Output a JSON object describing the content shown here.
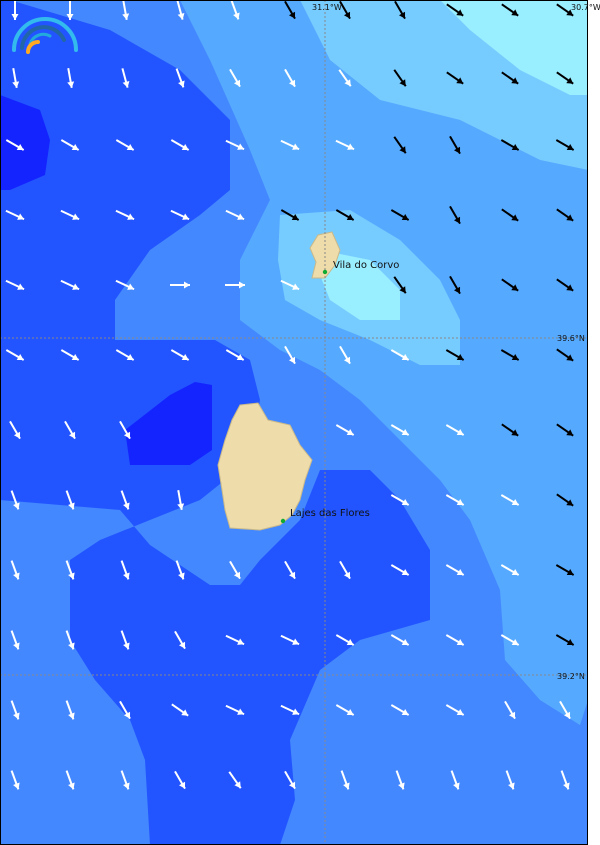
{
  "map": {
    "colors": {
      "band1": "#1424ff",
      "band2": "#2255ff",
      "band3": "#4488ff",
      "band4": "#55aaff",
      "band5": "#77ccff",
      "band6": "#99eeff",
      "land": "#eedcaa",
      "town": "#11aa33"
    },
    "graticule": {
      "lon_labels": [
        "31.1°W",
        "30.7°W"
      ],
      "lat_labels": [
        "39.6°N",
        "39.2°N"
      ]
    },
    "places": [
      {
        "name": "Vila do Corvo"
      },
      {
        "name": "Lajes das Flores"
      }
    ],
    "arrows": {
      "note_units": "direction in degrees clockwise from east",
      "rows": [
        [
          [
            90,
            "w"
          ],
          [
            90,
            "w"
          ],
          [
            80,
            "w"
          ],
          [
            75,
            "w"
          ],
          [
            70,
            "w"
          ],
          [
            60,
            "b"
          ],
          [
            60,
            "b"
          ],
          [
            60,
            "b"
          ],
          [
            35,
            "b"
          ],
          [
            35,
            "b"
          ],
          [
            35,
            "b"
          ]
        ],
        [
          [
            80,
            "w"
          ],
          [
            80,
            "w"
          ],
          [
            75,
            "w"
          ],
          [
            70,
            "w"
          ],
          [
            60,
            "w"
          ],
          [
            60,
            "w"
          ],
          [
            55,
            "w"
          ],
          [
            55,
            "b"
          ],
          [
            35,
            "b"
          ],
          [
            35,
            "b"
          ],
          [
            35,
            "b"
          ]
        ],
        [
          [
            30,
            "w"
          ],
          [
            30,
            "w"
          ],
          [
            30,
            "w"
          ],
          [
            30,
            "w"
          ],
          [
            25,
            "w"
          ],
          [
            25,
            "w"
          ],
          [
            25,
            "w"
          ],
          [
            55,
            "b"
          ],
          [
            60,
            "b"
          ],
          [
            30,
            "b"
          ],
          [
            30,
            "b"
          ]
        ],
        [
          [
            25,
            "w"
          ],
          [
            25,
            "w"
          ],
          [
            25,
            "w"
          ],
          [
            25,
            "w"
          ],
          [
            25,
            "w"
          ],
          [
            30,
            "b"
          ],
          [
            30,
            "b"
          ],
          [
            30,
            "b"
          ],
          [
            60,
            "b"
          ],
          [
            35,
            "b"
          ],
          [
            35,
            "b"
          ]
        ],
        [
          [
            25,
            "w"
          ],
          [
            25,
            "w"
          ],
          [
            25,
            "w"
          ],
          [
            0,
            "w"
          ],
          [
            0,
            "w"
          ],
          [
            25,
            "w"
          ],
          null,
          [
            55,
            "b"
          ],
          [
            60,
            "b"
          ],
          [
            35,
            "b"
          ],
          [
            35,
            "b"
          ]
        ],
        [
          [
            30,
            "w"
          ],
          [
            30,
            "w"
          ],
          [
            30,
            "w"
          ],
          [
            30,
            "w"
          ],
          [
            30,
            "w"
          ],
          [
            60,
            "w"
          ],
          [
            60,
            "w"
          ],
          [
            30,
            "w"
          ],
          [
            30,
            "b"
          ],
          [
            30,
            "b"
          ],
          [
            35,
            "b"
          ]
        ],
        [
          [
            60,
            "w"
          ],
          [
            60,
            "w"
          ],
          [
            60,
            "w"
          ],
          null,
          null,
          null,
          [
            30,
            "w"
          ],
          [
            30,
            "w"
          ],
          [
            30,
            "w"
          ],
          [
            35,
            "b"
          ],
          [
            35,
            "b"
          ]
        ],
        [
          [
            70,
            "w"
          ],
          [
            70,
            "w"
          ],
          [
            70,
            "w"
          ],
          [
            80,
            "w"
          ],
          null,
          null,
          null,
          [
            30,
            "w"
          ],
          [
            30,
            "w"
          ],
          [
            30,
            "w"
          ],
          [
            35,
            "b"
          ]
        ],
        [
          [
            70,
            "w"
          ],
          [
            70,
            "w"
          ],
          [
            70,
            "w"
          ],
          [
            70,
            "w"
          ],
          [
            60,
            "w"
          ],
          [
            60,
            "w"
          ],
          [
            60,
            "w"
          ],
          [
            30,
            "w"
          ],
          [
            30,
            "w"
          ],
          [
            30,
            "w"
          ],
          [
            30,
            "b"
          ]
        ],
        [
          [
            70,
            "w"
          ],
          [
            70,
            "w"
          ],
          [
            70,
            "w"
          ],
          [
            60,
            "w"
          ],
          [
            25,
            "w"
          ],
          [
            25,
            "w"
          ],
          [
            30,
            "w"
          ],
          [
            30,
            "w"
          ],
          [
            30,
            "w"
          ],
          [
            30,
            "w"
          ],
          [
            30,
            "b"
          ]
        ],
        [
          [
            70,
            "w"
          ],
          [
            70,
            "w"
          ],
          [
            60,
            "w"
          ],
          [
            35,
            "w"
          ],
          [
            25,
            "w"
          ],
          [
            25,
            "w"
          ],
          [
            30,
            "w"
          ],
          [
            30,
            "w"
          ],
          [
            30,
            "w"
          ],
          [
            60,
            "w"
          ],
          [
            60,
            "w"
          ]
        ],
        [
          [
            70,
            "w"
          ],
          [
            70,
            "w"
          ],
          [
            70,
            "w"
          ],
          [
            60,
            "w"
          ],
          [
            55,
            "w"
          ],
          [
            60,
            "w"
          ],
          [
            70,
            "w"
          ],
          [
            70,
            "w"
          ],
          [
            70,
            "w"
          ],
          [
            70,
            "w"
          ],
          [
            70,
            "w"
          ]
        ]
      ]
    }
  }
}
